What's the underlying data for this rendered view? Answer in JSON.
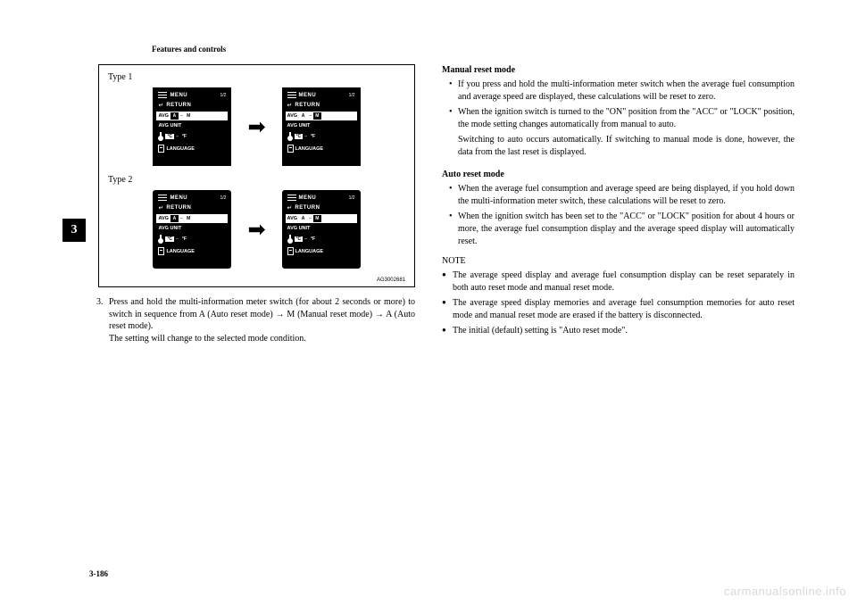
{
  "header": "Features and controls",
  "chapter_num": "3",
  "page_num": "3-186",
  "figure": {
    "type1_label": "Type 1",
    "type2_label": "Type 2",
    "code": "AG3002681",
    "screen": {
      "menu": "MENU",
      "page": "1/2",
      "return": "RETURN",
      "avg": "AVG",
      "avg_unit": "AVG UNIT",
      "mode_a": "A",
      "mode_m": "M",
      "temp_c": "°C",
      "temp_f": "°F",
      "language": "LANGUAGE"
    }
  },
  "step": {
    "num": "3.",
    "text": "Press and hold the multi-information meter switch (for about 2 seconds or more) to switch in sequence from A (Auto reset mode) → M (Manual reset mode) → A (Auto reset mode).",
    "sub": "The setting will change to the selected mode condition."
  },
  "right": {
    "manual_heading": "Manual reset mode",
    "manual_b1": "If you press and hold the multi-information meter switch when the average fuel consumption and average speed are displayed, these calculations will be reset to zero.",
    "manual_b2": "When the ignition switch is turned to the \"ON\" position from the \"ACC\" or \"LOCK\" position, the mode setting changes automatically from manual to auto.",
    "manual_b2_sub": "Switching to auto occurs automatically. If switching to manual mode is done, however, the data from the last reset is displayed.",
    "auto_heading": "Auto reset mode",
    "auto_b1": "When the average fuel consumption and average speed are being displayed, if you hold down the multi-information meter switch, these calculations will be reset to zero.",
    "auto_b2": "When the ignition switch has been set to the \"ACC\" or \"LOCK\" position for about 4 hours or more, the average fuel consumption display and the average speed display will automatically reset.",
    "note_heading": "NOTE",
    "note_b1": "The average speed display and average fuel consumption display can be reset separately in both auto reset mode and manual reset mode.",
    "note_b2": "The average speed display memories and average fuel consumption memories for auto reset mode and manual reset mode are erased if the battery is disconnected.",
    "note_b3": "The initial (default) setting is \"Auto reset mode\"."
  },
  "watermark": "carmanualsonline.info"
}
